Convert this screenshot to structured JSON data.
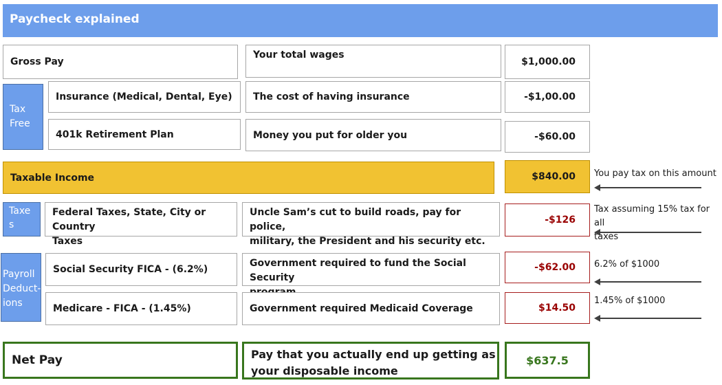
{
  "header": {
    "title": "Paycheck explained"
  },
  "gross": {
    "label": "Gross Pay",
    "description": "Your total wages",
    "amount": "$1,000.00"
  },
  "tax_free": {
    "side_label_line1": "Tax",
    "side_label_line2": "Free",
    "insurance": {
      "label": "Insurance (Medical, Dental, Eye)",
      "description": "The cost of having insurance",
      "amount": "-$1,00.00"
    },
    "retirement": {
      "label": "401k Retirement Plan",
      "description": "Money you put for older you",
      "amount": "-$60.00"
    }
  },
  "taxable": {
    "label": "Taxable Income",
    "amount": "$840.00",
    "note": "You pay tax on this amount"
  },
  "taxes": {
    "side_label_line1": "Taxe",
    "side_label_line2": "s",
    "label_line1": "Federal Taxes, State, City or Country",
    "label_line2": "Taxes",
    "description_line1": "Uncle Sam’s cut to build roads, pay for police,",
    "description_line2": "military, the President and his security etc.",
    "amount": "-$126",
    "note_line1": "Tax assuming 15% tax for all",
    "note_line2": "taxes"
  },
  "payroll": {
    "side_label_line1": "Payroll",
    "side_label_line2": "Deduct-",
    "side_label_line3": "ions",
    "ss": {
      "label": "Social Security FICA - (6.2%)",
      "description_line1": "Government required to fund the Social Security",
      "description_line2": "program",
      "amount": "-$62.00",
      "note": "6.2% of $1000"
    },
    "medicare": {
      "label": "Medicare  - FICA -  (1.45%)",
      "description": "Government required Medicaid Coverage",
      "amount": "$14.50",
      "note": "1.45% of $1000"
    }
  },
  "net": {
    "label": "Net Pay",
    "description_line1": "Pay that you actually end up getting as",
    "description_line2": "your disposable income",
    "amount": "$637.5"
  },
  "colors": {
    "header": "#6d9eeb",
    "taxable": "#f1c232",
    "negative": "#990000",
    "net": "#38761d"
  }
}
